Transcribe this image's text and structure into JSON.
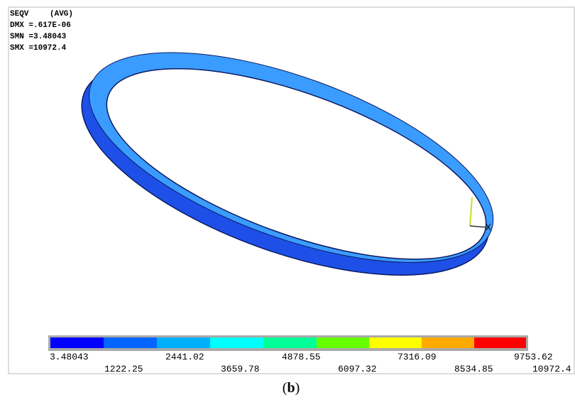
{
  "header": {
    "title": "SEQV",
    "avg": "(AVG)",
    "lines": [
      "DMX =.617E-06",
      "SMN =3.48043",
      "SMX =10972.4"
    ]
  },
  "legend": {
    "labels": [
      "3.48043",
      "1222.25",
      "2441.02",
      "3659.78",
      "4878.55",
      "6097.32",
      "7316.09",
      "8534.85",
      "9753.62",
      "10972.4"
    ]
  },
  "axis_label": "X",
  "caption": {
    "parts": [
      "(",
      "b",
      ")"
    ]
  }
}
